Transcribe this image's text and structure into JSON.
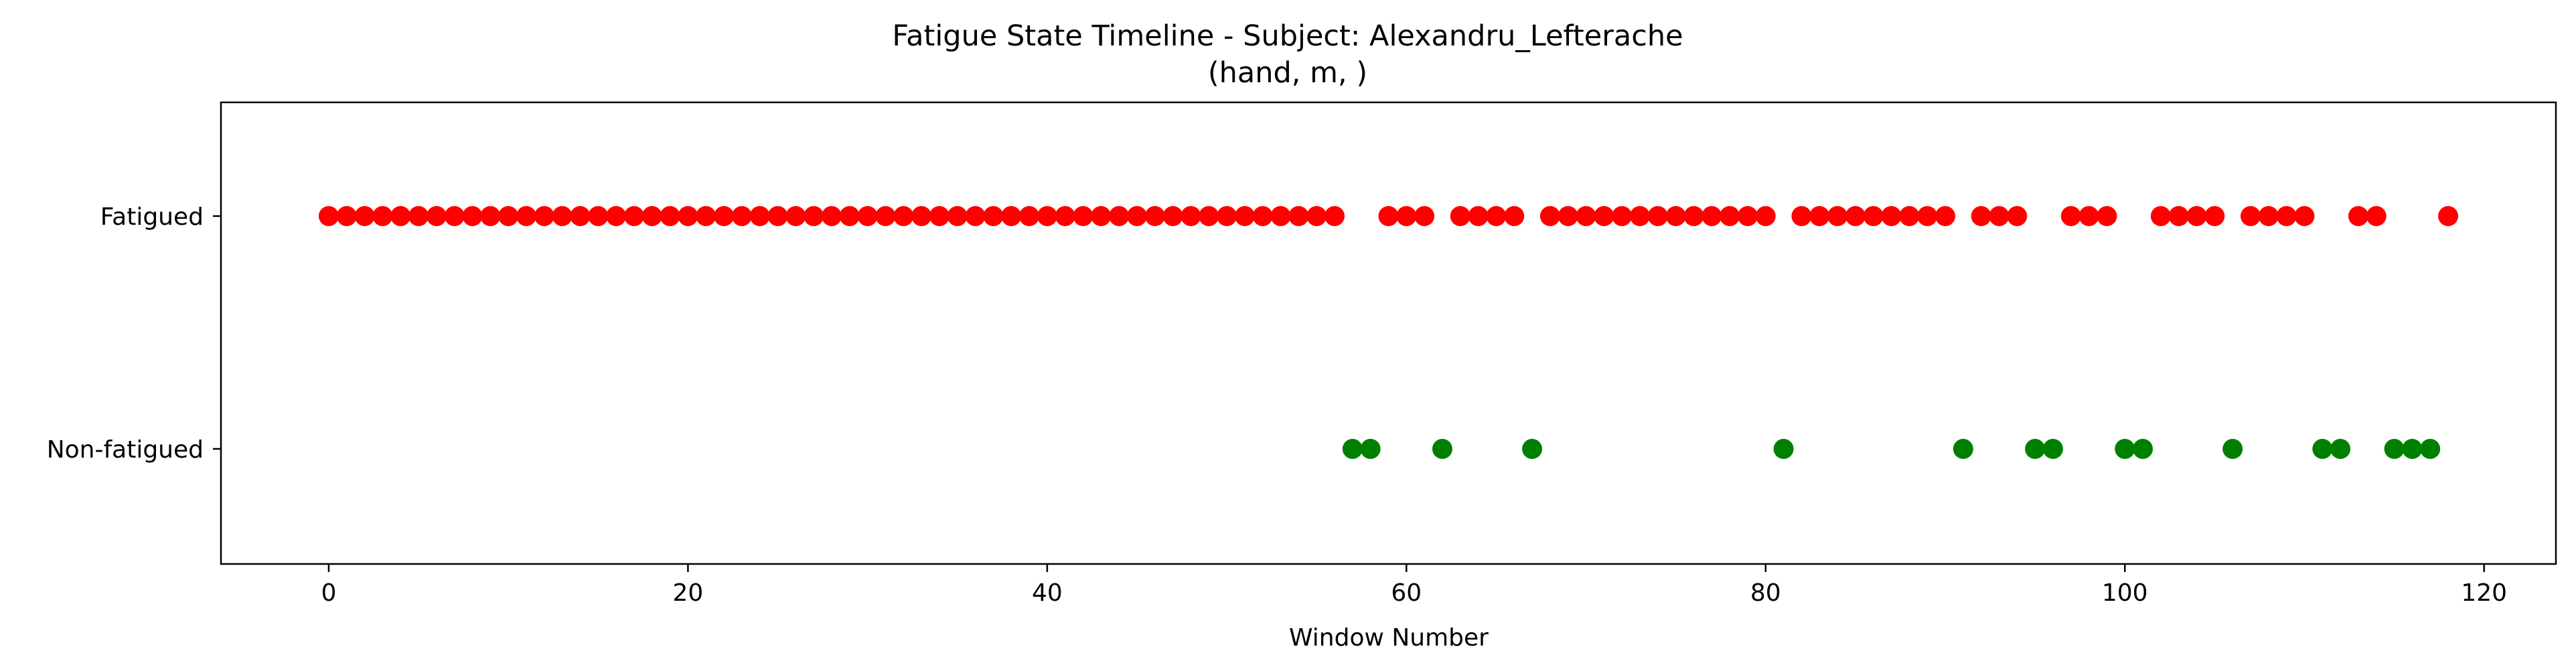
{
  "chart_data": {
    "type": "scatter",
    "title_line1": "Fatigue State Timeline - Subject: Alexandru_Lefterache",
    "title_line2": "(hand, m, )",
    "xlabel": "Window Number",
    "ylabel": "",
    "xlim": [
      -6,
      124
    ],
    "xticks": [
      0,
      20,
      40,
      60,
      80,
      100,
      120
    ],
    "ycategories": [
      "Non-fatigued",
      "Fatigued"
    ],
    "grid": false,
    "colors": {
      "Fatigued": "#ff0000",
      "Non-fatigued": "#008000"
    },
    "series": [
      {
        "category": "Fatigued",
        "x": [
          0,
          1,
          2,
          3,
          4,
          5,
          6,
          7,
          8,
          9,
          10,
          11,
          12,
          13,
          14,
          15,
          16,
          17,
          18,
          19,
          20,
          21,
          22,
          23,
          24,
          25,
          26,
          27,
          28,
          29,
          30,
          31,
          32,
          33,
          34,
          35,
          36,
          37,
          38,
          39,
          40,
          41,
          42,
          43,
          44,
          45,
          46,
          47,
          48,
          49,
          50,
          51,
          52,
          53,
          54,
          55,
          56,
          59,
          60,
          61,
          63,
          64,
          65,
          66,
          68,
          69,
          70,
          71,
          72,
          73,
          74,
          75,
          76,
          77,
          78,
          79,
          80,
          82,
          83,
          84,
          85,
          86,
          87,
          88,
          89,
          90,
          92,
          93,
          94,
          97,
          98,
          99,
          102,
          103,
          104,
          105,
          107,
          108,
          109,
          110,
          113,
          114,
          118
        ]
      },
      {
        "category": "Non-fatigued",
        "x": [
          57,
          58,
          62,
          67,
          81,
          91,
          95,
          96,
          100,
          101,
          106,
          111,
          112,
          115,
          116,
          117
        ]
      }
    ]
  }
}
